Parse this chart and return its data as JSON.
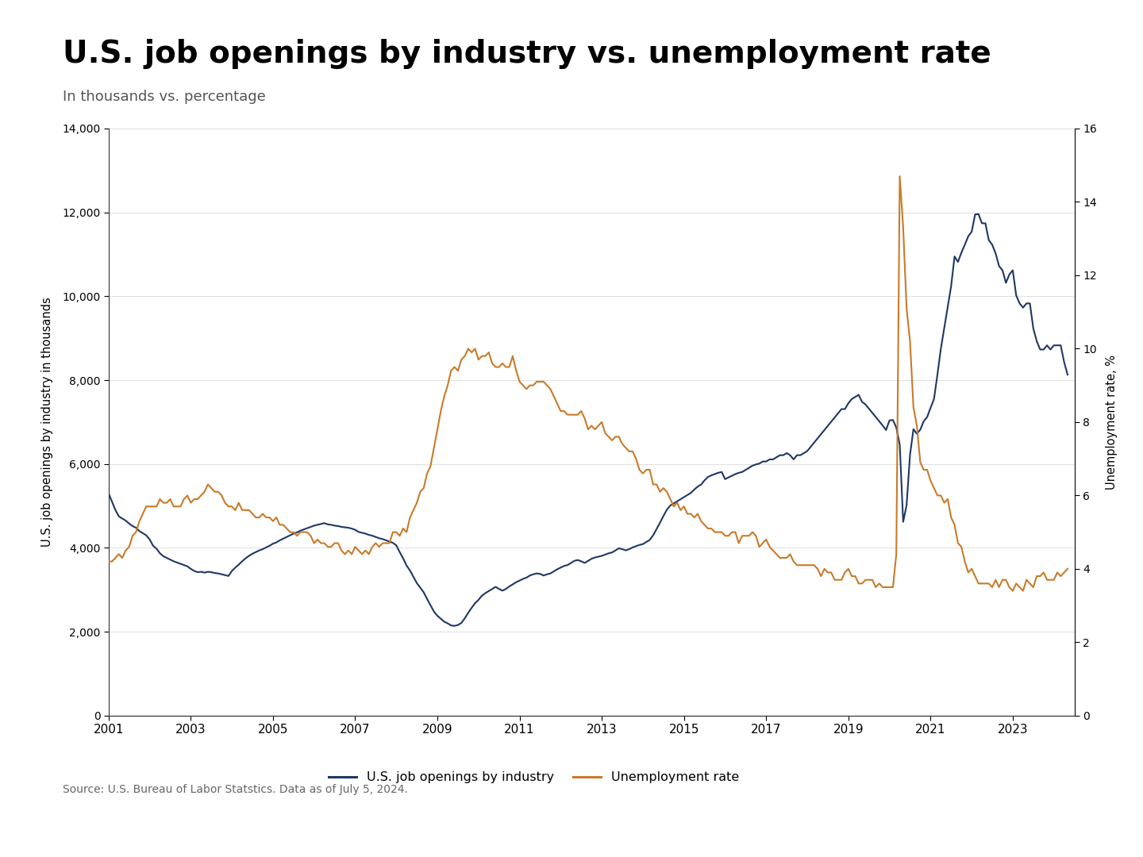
{
  "title": "U.S. job openings by industry vs. unemployment rate",
  "subtitle": "In thousands vs. percentage",
  "source": "Source: U.S. Bureau of Labor Statstics. Data as of July 5, 2024.",
  "ylabel_left": "U.S. job openings by industry in thousands",
  "ylabel_right": "Unemployment rate, %",
  "line1_label": "U.S. job openings by industry",
  "line2_label": "Unemployment rate",
  "line1_color": "#1f3864",
  "line2_color": "#c97b2a",
  "bg_color": "#ffffff",
  "title_color": "#000000",
  "subtitle_color": "#555555",
  "source_color": "#666666",
  "divider_color": "#7a6645",
  "ylim_left": [
    0,
    14000
  ],
  "ylim_right": [
    0,
    16
  ],
  "yticks_left": [
    0,
    2000,
    4000,
    6000,
    8000,
    10000,
    12000,
    14000
  ],
  "yticks_right": [
    0,
    2,
    4,
    6,
    8,
    10,
    12,
    14,
    16
  ],
  "xticks": [
    2001,
    2003,
    2005,
    2007,
    2009,
    2011,
    2013,
    2015,
    2017,
    2019,
    2021,
    2023
  ],
  "job_openings": [
    5300,
    5100,
    4900,
    4750,
    4700,
    4650,
    4580,
    4520,
    4480,
    4400,
    4350,
    4300,
    4200,
    4050,
    3980,
    3870,
    3800,
    3760,
    3720,
    3680,
    3650,
    3620,
    3590,
    3560,
    3500,
    3450,
    3420,
    3430,
    3410,
    3430,
    3420,
    3400,
    3390,
    3370,
    3350,
    3330,
    3450,
    3530,
    3600,
    3680,
    3750,
    3810,
    3860,
    3900,
    3940,
    3970,
    4010,
    4050,
    4100,
    4130,
    4180,
    4220,
    4260,
    4300,
    4340,
    4370,
    4410,
    4440,
    4470,
    4500,
    4530,
    4550,
    4570,
    4590,
    4560,
    4550,
    4530,
    4520,
    4500,
    4490,
    4480,
    4460,
    4430,
    4380,
    4360,
    4340,
    4310,
    4290,
    4260,
    4230,
    4210,
    4180,
    4150,
    4120,
    4060,
    3900,
    3750,
    3580,
    3460,
    3310,
    3160,
    3050,
    2940,
    2780,
    2630,
    2480,
    2380,
    2310,
    2240,
    2200,
    2150,
    2140,
    2160,
    2210,
    2320,
    2450,
    2570,
    2680,
    2760,
    2860,
    2920,
    2970,
    3020,
    3070,
    3020,
    2980,
    3020,
    3080,
    3130,
    3180,
    3220,
    3260,
    3290,
    3340,
    3370,
    3390,
    3380,
    3340,
    3370,
    3390,
    3440,
    3490,
    3530,
    3570,
    3590,
    3640,
    3690,
    3710,
    3680,
    3640,
    3690,
    3740,
    3770,
    3790,
    3810,
    3840,
    3870,
    3890,
    3940,
    3990,
    3970,
    3940,
    3970,
    4010,
    4040,
    4070,
    4090,
    4140,
    4190,
    4300,
    4450,
    4600,
    4760,
    4910,
    5010,
    5060,
    5110,
    5160,
    5210,
    5260,
    5310,
    5390,
    5460,
    5510,
    5610,
    5690,
    5730,
    5760,
    5790,
    5810,
    5640,
    5680,
    5720,
    5760,
    5790,
    5810,
    5860,
    5910,
    5960,
    5990,
    6010,
    6060,
    6060,
    6110,
    6110,
    6160,
    6210,
    6210,
    6260,
    6210,
    6110,
    6210,
    6210,
    6260,
    6310,
    6410,
    6510,
    6610,
    6710,
    6810,
    6910,
    7010,
    7110,
    7210,
    7310,
    7310,
    7450,
    7550,
    7600,
    7650,
    7480,
    7420,
    7320,
    7220,
    7120,
    7020,
    6920,
    6810,
    7040,
    7050,
    6870,
    6460,
    4620,
    5020,
    6220,
    6830,
    6720,
    6820,
    7020,
    7120,
    7340,
    7550,
    8130,
    8750,
    9250,
    9760,
    10240,
    10950,
    10820,
    11040,
    11230,
    11430,
    11540,
    11950,
    11960,
    11740,
    11740,
    11340,
    11230,
    11020,
    10720,
    10620,
    10320,
    10520,
    10620,
    10020,
    9830,
    9730,
    9830,
    9830,
    9230,
    8930,
    8730,
    8730,
    8830,
    8730,
    8830,
    8830,
    8830,
    8430,
    8130
  ],
  "unemployment": [
    4.2,
    4.2,
    4.3,
    4.4,
    4.3,
    4.5,
    4.6,
    4.9,
    5.0,
    5.3,
    5.5,
    5.7,
    5.7,
    5.7,
    5.7,
    5.9,
    5.8,
    5.8,
    5.9,
    5.7,
    5.7,
    5.7,
    5.9,
    6.0,
    5.8,
    5.9,
    5.9,
    6.0,
    6.1,
    6.3,
    6.2,
    6.1,
    6.1,
    6.0,
    5.8,
    5.7,
    5.7,
    5.6,
    5.8,
    5.6,
    5.6,
    5.6,
    5.5,
    5.4,
    5.4,
    5.5,
    5.4,
    5.4,
    5.3,
    5.4,
    5.2,
    5.2,
    5.1,
    5.0,
    5.0,
    4.9,
    5.0,
    5.0,
    5.0,
    4.9,
    4.7,
    4.8,
    4.7,
    4.7,
    4.6,
    4.6,
    4.7,
    4.7,
    4.5,
    4.4,
    4.5,
    4.4,
    4.6,
    4.5,
    4.4,
    4.5,
    4.4,
    4.6,
    4.7,
    4.6,
    4.7,
    4.7,
    4.7,
    5.0,
    5.0,
    4.9,
    5.1,
    5.0,
    5.4,
    5.6,
    5.8,
    6.1,
    6.2,
    6.6,
    6.8,
    7.3,
    7.8,
    8.3,
    8.7,
    9.0,
    9.4,
    9.5,
    9.4,
    9.7,
    9.8,
    10.0,
    9.9,
    10.0,
    9.7,
    9.8,
    9.8,
    9.9,
    9.6,
    9.5,
    9.5,
    9.6,
    9.5,
    9.5,
    9.8,
    9.4,
    9.1,
    9.0,
    8.9,
    9.0,
    9.0,
    9.1,
    9.1,
    9.1,
    9.0,
    8.9,
    8.7,
    8.5,
    8.3,
    8.3,
    8.2,
    8.2,
    8.2,
    8.2,
    8.3,
    8.1,
    7.8,
    7.9,
    7.8,
    7.9,
    8.0,
    7.7,
    7.6,
    7.5,
    7.6,
    7.6,
    7.4,
    7.3,
    7.2,
    7.2,
    7.0,
    6.7,
    6.6,
    6.7,
    6.7,
    6.3,
    6.3,
    6.1,
    6.2,
    6.1,
    5.9,
    5.7,
    5.8,
    5.6,
    5.7,
    5.5,
    5.5,
    5.4,
    5.5,
    5.3,
    5.2,
    5.1,
    5.1,
    5.0,
    5.0,
    5.0,
    4.9,
    4.9,
    5.0,
    5.0,
    4.7,
    4.9,
    4.9,
    4.9,
    5.0,
    4.9,
    4.6,
    4.7,
    4.8,
    4.6,
    4.5,
    4.4,
    4.3,
    4.3,
    4.3,
    4.4,
    4.2,
    4.1,
    4.1,
    4.1,
    4.1,
    4.1,
    4.1,
    4.0,
    3.8,
    4.0,
    3.9,
    3.9,
    3.7,
    3.7,
    3.7,
    3.9,
    4.0,
    3.8,
    3.8,
    3.6,
    3.6,
    3.7,
    3.7,
    3.7,
    3.5,
    3.6,
    3.5,
    3.5,
    3.5,
    3.5,
    4.4,
    14.7,
    13.3,
    11.1,
    10.2,
    8.4,
    7.9,
    6.9,
    6.7,
    6.7,
    6.4,
    6.2,
    6.0,
    6.0,
    5.8,
    5.9,
    5.4,
    5.2,
    4.7,
    4.6,
    4.2,
    3.9,
    4.0,
    3.8,
    3.6,
    3.6,
    3.6,
    3.6,
    3.5,
    3.7,
    3.5,
    3.7,
    3.7,
    3.5,
    3.4,
    3.6,
    3.5,
    3.4,
    3.7,
    3.6,
    3.5,
    3.8,
    3.8,
    3.9,
    3.7,
    3.7,
    3.7,
    3.9,
    3.8,
    3.9,
    4.0
  ]
}
